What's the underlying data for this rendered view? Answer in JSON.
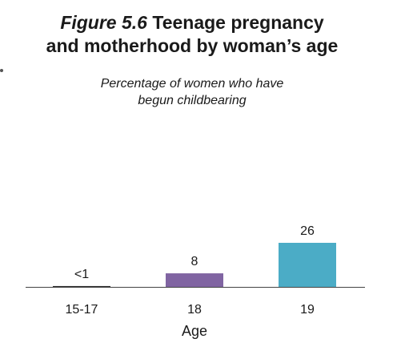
{
  "figure": {
    "number_label": "Figure 5.6",
    "title_line1_rest": "Teenage pregnancy",
    "title_line2": "and motherhood by woman’s age",
    "subtitle_line1": "Percentage of women who have",
    "subtitle_line2": "begun childbearing"
  },
  "chart_data": {
    "type": "bar",
    "title": "Teenage pregnancy and motherhood by woman’s age",
    "subtitle": "Percentage of women who have begun childbearing",
    "xlabel": "Age",
    "ylabel": "",
    "categories": [
      "15-17",
      "18",
      "19"
    ],
    "values": [
      0.5,
      8,
      26
    ],
    "data_labels": [
      "<1",
      "8",
      "26"
    ],
    "colors": [
      "#2e2e2e",
      "#8064a2",
      "#4bacc6"
    ],
    "ylim": [
      0,
      26
    ],
    "grid": false,
    "legend": "none"
  }
}
